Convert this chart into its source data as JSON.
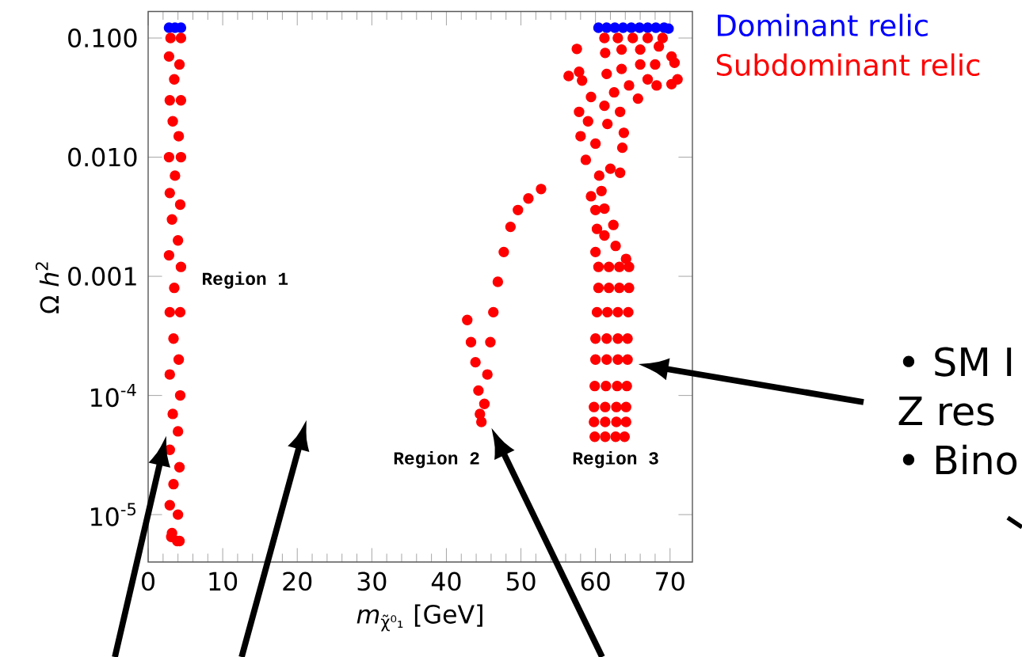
{
  "chart_data": {
    "type": "scatter",
    "xlabel": "*m*$_{χ̃⁰₁}$ [GeV]",
    "ylabel": "Ω *h*$^{2}$",
    "xlim": [
      0,
      73
    ],
    "ylim": [
      4e-06,
      0.167
    ],
    "log": true,
    "xticks": [
      0,
      10,
      20,
      30,
      40,
      50,
      60,
      70
    ],
    "yticks": [
      {
        "value": 0.1,
        "label": "0.100"
      },
      {
        "value": 0.01,
        "label": "0.010"
      },
      {
        "value": 0.001,
        "label": "0.001"
      },
      {
        "value": 0.0001,
        "label": "10$^{-4}$"
      },
      {
        "value": 1e-05,
        "label": "10$^{-5}$"
      }
    ],
    "marker": "circle",
    "legend": "top right",
    "series": [
      {
        "name": "Dominant relic",
        "color": "#0000ff",
        "x": [
          2.8,
          3.6,
          4.4,
          60.4,
          61.5,
          62.6,
          63.7,
          64.8,
          65.9,
          67.0,
          68.1,
          69.2,
          69.8
        ],
        "values": [
          0.122,
          0.122,
          0.122,
          0.122,
          0.122,
          0.122,
          0.122,
          0.122,
          0.122,
          0.122,
          0.122,
          0.122,
          0.12
        ]
      },
      {
        "name": "Subdominant relic",
        "color": "#ff0000",
        "x": [
          3.0,
          4.4,
          2.8,
          4.2,
          3.5,
          2.9,
          4.4,
          3.3,
          4.1,
          2.8,
          4.4,
          3.6,
          2.9,
          4.3,
          3.2,
          4.0,
          2.8,
          4.4,
          3.5,
          2.9,
          4.3,
          3.4,
          4.1,
          2.9,
          4.3,
          3.3,
          4.0,
          2.9,
          4.2,
          3.4,
          2.9,
          4.0,
          3.2,
          3.9,
          3.1,
          4.2,
          52.7,
          51.0,
          49.6,
          48.6,
          47.7,
          46.9,
          46.3,
          45.9,
          45.5,
          45.1,
          44.7,
          42.8,
          43.3,
          43.9,
          44.3,
          44.5,
          60.0,
          61.2,
          60.2,
          62.4,
          61.2,
          60.0,
          62.7,
          64.1,
          60.4,
          61.8,
          63.2,
          64.5,
          60.4,
          61.8,
          63.2,
          64.5,
          60.2,
          61.6,
          63.0,
          64.4,
          60.0,
          61.5,
          63.0,
          64.3,
          60.0,
          61.5,
          63.0,
          64.3,
          59.9,
          61.4,
          62.9,
          64.2,
          59.8,
          61.3,
          62.8,
          64.1,
          59.8,
          61.3,
          62.8,
          64.1,
          59.9,
          61.3,
          62.7,
          63.9,
          57.5,
          56.4,
          57.8,
          58.2,
          59.4,
          57.8,
          58.0,
          58.7,
          59.4,
          60.8,
          63.3,
          63.6,
          63.8,
          61.6,
          60.0,
          62.0,
          60.5,
          59.0,
          61.2,
          63.0,
          65.0,
          67.0,
          69.0,
          61.3,
          63.5,
          66.0,
          68.5,
          70.2,
          61.5,
          63.5,
          66.0,
          68.0,
          70.6,
          71.0,
          70.2,
          68.2,
          65.7,
          63.3,
          61.2,
          62.5,
          64.5,
          67.0
        ],
        "values": [
          0.1,
          0.1,
          0.07,
          0.06,
          0.045,
          0.03,
          0.03,
          0.02,
          0.015,
          0.01,
          0.01,
          0.007,
          0.005,
          0.004,
          0.003,
          0.002,
          0.0015,
          0.0012,
          0.0008,
          0.0005,
          0.0005,
          0.0003,
          0.0002,
          0.00015,
          0.0001,
          7e-05,
          5e-05,
          3.5e-05,
          2.5e-05,
          1.8e-05,
          1.2e-05,
          1e-05,
          7e-06,
          6e-06,
          6.5e-06,
          6e-06,
          0.0054,
          0.0045,
          0.0036,
          0.0026,
          0.0016,
          0.0009,
          0.0005,
          0.00028,
          0.00015,
          8.5e-05,
          6e-05,
          0.00043,
          0.00028,
          0.00019,
          0.00011,
          7e-05,
          0.0036,
          0.0037,
          0.0025,
          0.0027,
          0.0022,
          0.0016,
          0.0018,
          0.0014,
          0.0012,
          0.0012,
          0.0012,
          0.0012,
          0.0008,
          0.0008,
          0.0008,
          0.0008,
          0.0005,
          0.0005,
          0.0005,
          0.0005,
          0.0003,
          0.0003,
          0.0003,
          0.0003,
          0.0002,
          0.0002,
          0.0002,
          0.0002,
          0.00012,
          0.00012,
          0.00012,
          0.00012,
          8e-05,
          8e-05,
          8e-05,
          8e-05,
          6e-05,
          6e-05,
          6e-05,
          6e-05,
          4.5e-05,
          4.5e-05,
          4.5e-05,
          4.5e-05,
          0.081,
          0.048,
          0.052,
          0.044,
          0.032,
          0.024,
          0.015,
          0.0095,
          0.0047,
          0.0052,
          0.0074,
          0.012,
          0.016,
          0.019,
          0.013,
          0.008,
          0.007,
          0.02,
          0.1,
          0.1,
          0.1,
          0.1,
          0.1,
          0.075,
          0.08,
          0.08,
          0.085,
          0.07,
          0.05,
          0.055,
          0.06,
          0.06,
          0.062,
          0.045,
          0.041,
          0.04,
          0.031,
          0.024,
          0.027,
          0.035,
          0.04,
          0.045
        ]
      }
    ],
    "annotations": [
      "Region 1",
      "Region 2",
      "Region 3",
      "• SM I",
      "Z res",
      "• Bino"
    ]
  }
}
